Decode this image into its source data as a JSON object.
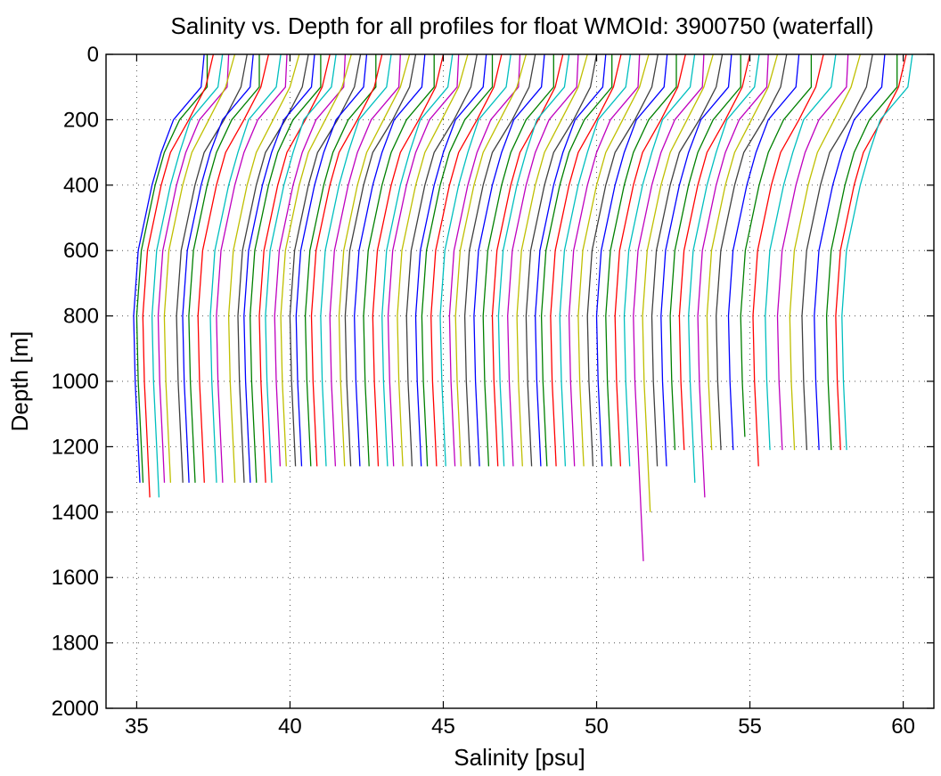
{
  "chart_data": {
    "type": "line",
    "title": "Salinity vs. Depth for all profiles for float WMOId: 3900750 (waterfall)",
    "xlabel": "Salinity [psu]",
    "ylabel": "Depth [m]",
    "xlim": [
      34,
      61
    ],
    "ylim": [
      2000,
      0
    ],
    "y_axis_inverted": true,
    "grid": true,
    "xticks": [
      35,
      40,
      45,
      50,
      55,
      60
    ],
    "yticks": [
      0,
      200,
      400,
      600,
      800,
      1000,
      1200,
      1400,
      1600,
      1800,
      2000
    ],
    "color_cycle": [
      "#0000ff",
      "#008000",
      "#ff0000",
      "#00bfbf",
      "#bf00bf",
      "#bfbf00",
      "#404040"
    ],
    "series_shape_depths": [
      0,
      100,
      200,
      300,
      400,
      600,
      800,
      1000,
      1200,
      1400,
      1600
    ],
    "series_shape_offsets": [
      2.3,
      2.15,
      1.4,
      0.9,
      0.6,
      0.15,
      0.0,
      0.05,
      0.15,
      0.25,
      0.35
    ],
    "series_surface_salinity": [
      37.2,
      37.3,
      37.5,
      37.8,
      38.0,
      38.2,
      38.6,
      38.8,
      39.0,
      39.3,
      39.7,
      39.9,
      40.3,
      40.6,
      40.8,
      41.0,
      41.3,
      41.5,
      41.8,
      42.0,
      42.3,
      42.5,
      42.8,
      43.0,
      43.3,
      43.6,
      43.9,
      44.1,
      44.4,
      44.7,
      45.0,
      45.3,
      45.5,
      45.8,
      46.1,
      46.4,
      46.6,
      46.9,
      47.2,
      47.5,
      47.7,
      48.0,
      48.3,
      48.6,
      48.9,
      49.1,
      49.4,
      49.7,
      50.0,
      50.3,
      50.5,
      50.8,
      51.1,
      51.4,
      51.7,
      52.0,
      52.3,
      52.6,
      52.9,
      53.2,
      53.5,
      53.8,
      54.1,
      54.4,
      54.7,
      55.0,
      55.3,
      55.6,
      55.9,
      56.2,
      56.6,
      57.0,
      57.4,
      57.8,
      58.2,
      58.6,
      59.0,
      59.4,
      59.8,
      60.1,
      60.3
    ],
    "series_max_depth": [
      1310,
      1310,
      1355,
      1355,
      1310,
      1310,
      1310,
      1310,
      1310,
      1310,
      1310,
      1310,
      1310,
      1310,
      1310,
      1310,
      1310,
      1310,
      1260,
      1260,
      1260,
      1260,
      1260,
      1260,
      1260,
      1260,
      1260,
      1260,
      1260,
      1260,
      1260,
      1260,
      1260,
      1260,
      1260,
      1260,
      1260,
      1260,
      1260,
      1260,
      1260,
      1260,
      1260,
      1260,
      1260,
      1260,
      1260,
      1260,
      1260,
      1260,
      1260,
      1260,
      1260,
      1260,
      1260,
      1260,
      1260,
      1260,
      1260,
      1260,
      1550,
      1400,
      1260,
      1260,
      1210,
      1210,
      1310,
      1355,
      1210,
      1210,
      1210,
      1170,
      1260,
      1210,
      1210,
      1210,
      1210,
      1210,
      1210,
      1210,
      1210
    ]
  }
}
